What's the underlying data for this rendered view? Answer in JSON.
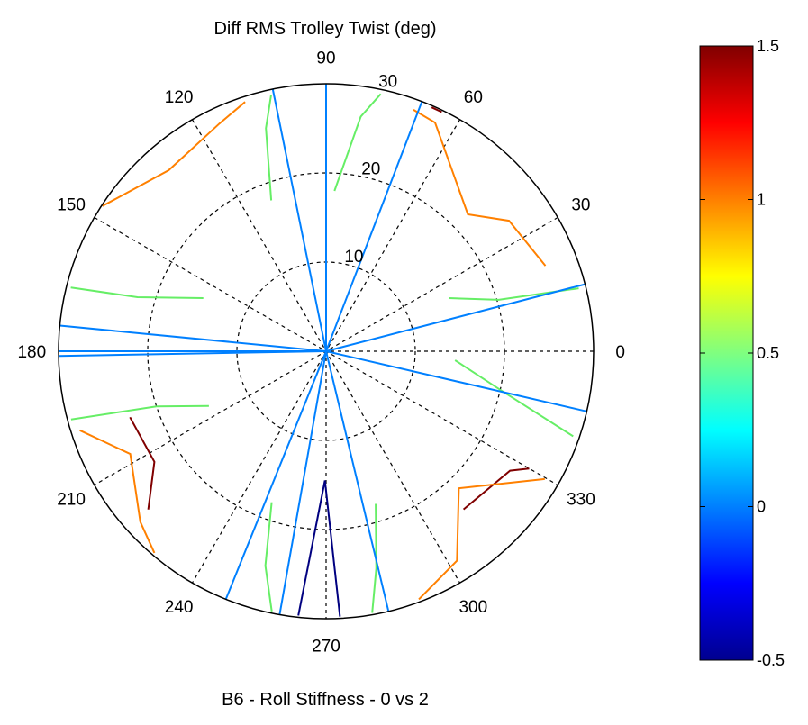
{
  "chart_data": {
    "type": "polar_contour",
    "title": "Diff RMS Trolley Twist (deg)",
    "xlabel": "B6 - Roll Stiffness - 0 vs 2",
    "angle_ticks": [
      "0",
      "30",
      "60",
      "90",
      "120",
      "150",
      "180",
      "210",
      "240",
      "270",
      "300",
      "330"
    ],
    "radius_ticks": [
      "10",
      "20",
      "30"
    ],
    "radius_max": 30,
    "colorbar": {
      "colormap": "jet",
      "min": -0.5,
      "max": 1.5,
      "ticks": [
        "-0.5",
        "0",
        "0.5",
        "1",
        "1.5"
      ]
    },
    "contours": [
      {
        "level": 1.25,
        "color": "#800000",
        "paths": [
          [
            [
              66.6,
              29.8
            ],
            [
              64.2,
              29.8
            ]
          ],
          [
            [
              198.6,
              23.2
            ],
            [
              212.8,
              22.9
            ],
            [
              221.7,
              26.7
            ]
          ],
          [
            [
              311.0,
              23.5
            ],
            [
              327.0,
              24.6
            ],
            [
              330.0,
              26.3
            ]
          ]
        ]
      },
      {
        "level": 1.0,
        "color": "#ff8000",
        "paths": [
          [
            [
              21.3,
              26.4
            ],
            [
              35.5,
              25.2
            ],
            [
              44.0,
              22.1
            ],
            [
              64.5,
              28.4
            ],
            [
              70.1,
              28.8
            ]
          ],
          [
            [
              108.0,
              29.4
            ],
            [
              115.1,
              28.2
            ],
            [
              131.0,
              26.9
            ],
            [
              147.0,
              29.9
            ]
          ],
          [
            [
              197.8,
              29.0
            ],
            [
              207.7,
              24.8
            ],
            [
              222.6,
              28.3
            ],
            [
              229.6,
              29.7
            ]
          ],
          [
            [
              290.5,
              29.7
            ],
            [
              302.0,
              27.7
            ],
            [
              314.1,
              21.4
            ],
            [
              329.7,
              28.4
            ]
          ]
        ]
      },
      {
        "level": 0.75,
        "color": "#66ee66",
        "paths": [
          [
            [
              78.0,
              29.5
            ],
            [
              81.6,
              26.6
            ],
            [
              87.0,
              18.0
            ]
          ],
          [
            [
              102.1,
              29.4
            ],
            [
              105.1,
              25.9
            ],
            [
              110.0,
              18.0
            ]
          ],
          [
            [
              166.0,
              29.5
            ],
            [
              164.0,
              22.0
            ],
            [
              156.6,
              15.0
            ]
          ],
          [
            [
              14.0,
              29.2
            ],
            [
              16.6,
              20.2
            ],
            [
              23.4,
              15.0
            ]
          ],
          [
            [
              195.0,
              29.6
            ],
            [
              198.0,
              20.0
            ],
            [
              205.0,
              14.5
            ]
          ],
          [
            [
              258.2,
              29.8
            ],
            [
              254.2,
              25.0
            ],
            [
              250.2,
              18.0
            ]
          ],
          [
            [
              280.0,
              29.8
            ],
            [
              283.0,
              25.0
            ],
            [
              288.0,
              18.0
            ]
          ],
          [
            [
              341.0,
              29.3
            ],
            [
              347.0,
              20.5
            ],
            [
              356.0,
              14.5
            ]
          ]
        ]
      },
      {
        "level": 0.25,
        "color": "#0080ff",
        "paths": [
          [
            [
              101.5,
              30
            ],
            [
              101.5,
              0
            ]
          ],
          [
            [
              90.0,
              30
            ],
            [
              90.0,
              0
            ]
          ],
          [
            [
              69.0,
              30
            ],
            [
              69.0,
              0
            ]
          ],
          [
            [
              14.5,
              30
            ],
            [
              14.5,
              0
            ]
          ],
          [
            [
              180.0,
              30
            ],
            [
              180.0,
              0
            ]
          ],
          [
            [
              181.0,
              30
            ],
            [
              181.0,
              0
            ]
          ],
          [
            [
              248.0,
              30
            ],
            [
              248.0,
              0
            ]
          ],
          [
            [
              260.0,
              30
            ],
            [
              260.0,
              0
            ]
          ],
          [
            [
              283.5,
              30
            ],
            [
              283.5,
              0
            ]
          ],
          [
            [
              347.0,
              30
            ],
            [
              347.0,
              0
            ]
          ],
          [
            [
              174.5,
              30
            ],
            [
              174.5,
              0
            ]
          ]
        ]
      },
      {
        "level": -0.25,
        "color": "#000080",
        "paths": [
          [
            [
              264.0,
              29.8
            ],
            [
              269.5,
              14.5
            ],
            [
              273.0,
              29.8
            ]
          ]
        ]
      }
    ]
  }
}
